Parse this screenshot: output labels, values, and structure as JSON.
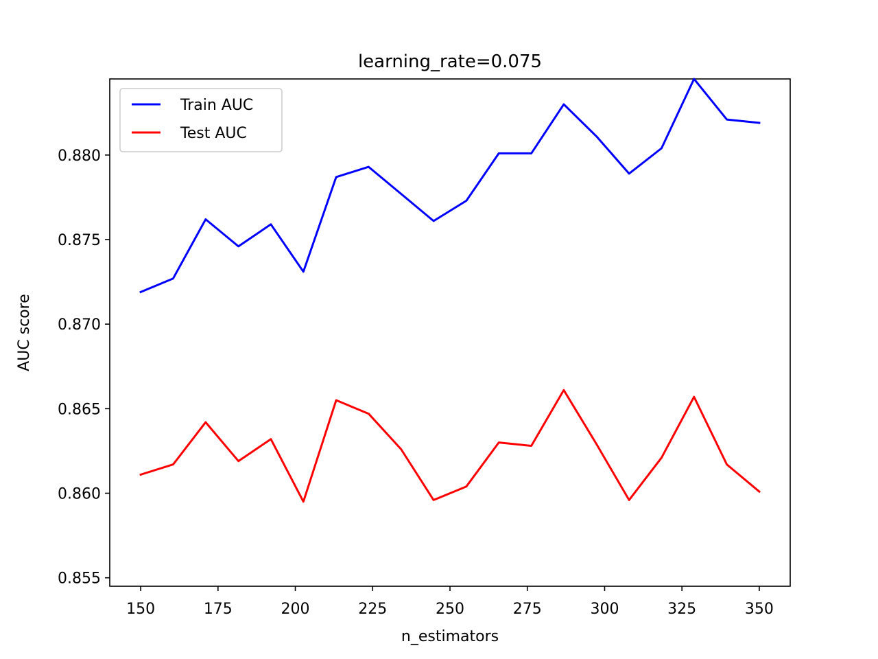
{
  "chart_data": {
    "type": "line",
    "title": "learning_rate=0.075",
    "xlabel": "n_estimators",
    "ylabel": "AUC score",
    "xlim": [
      140,
      360
    ],
    "ylim": [
      0.8545,
      0.8845
    ],
    "x_ticks": [
      150,
      175,
      200,
      225,
      250,
      275,
      300,
      325,
      350
    ],
    "x_tick_labels": [
      "150",
      "175",
      "200",
      "225",
      "250",
      "275",
      "300",
      "325",
      "350"
    ],
    "y_ticks": [
      0.855,
      0.86,
      0.865,
      0.87,
      0.875,
      0.88
    ],
    "y_tick_labels": [
      "0.855",
      "0.860",
      "0.865",
      "0.870",
      "0.875",
      "0.880"
    ],
    "grid": false,
    "legend_position": "upper-left",
    "x": [
      150,
      160.5,
      171,
      181.6,
      192.1,
      202.6,
      213.2,
      223.7,
      234.2,
      244.7,
      255.3,
      265.8,
      276.3,
      286.8,
      297.4,
      307.9,
      318.4,
      328.9,
      339.5,
      350
    ],
    "series": [
      {
        "name": "Train AUC",
        "color": "#0000ff",
        "values": [
          0.8719,
          0.8727,
          0.8762,
          0.8746,
          0.8759,
          0.8731,
          0.8787,
          0.8793,
          0.8777,
          0.8761,
          0.8773,
          0.8801,
          0.8801,
          0.883,
          0.8811,
          0.8789,
          0.8804,
          0.8845,
          0.8821,
          0.8819
        ]
      },
      {
        "name": "Test AUC",
        "color": "#ff0000",
        "values": [
          0.8611,
          0.8617,
          0.8642,
          0.8619,
          0.8632,
          0.8595,
          0.8655,
          0.8647,
          0.8626,
          0.8596,
          0.8604,
          0.863,
          0.8628,
          0.8661,
          0.8629,
          0.8596,
          0.8621,
          0.8657,
          0.8617,
          0.8601
        ]
      }
    ]
  }
}
